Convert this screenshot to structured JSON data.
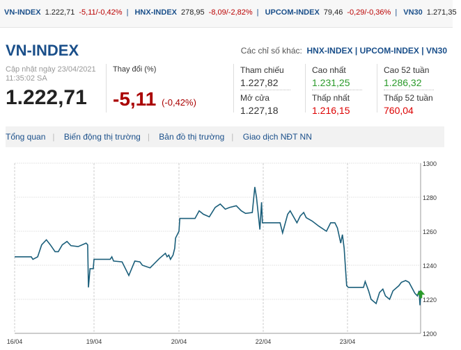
{
  "ticker": [
    {
      "name": "VN-INDEX",
      "value": "1.222,71",
      "change": "-5,11/-0,42%"
    },
    {
      "name": "HNX-INDEX",
      "value": "278,95",
      "change": "-8,09/-2,82%"
    },
    {
      "name": "UPCOM-INDEX",
      "value": "79,46",
      "change": "-0,29/-0,36%"
    },
    {
      "name": "VN30",
      "value": "1.271,35",
      "change": ""
    }
  ],
  "header": {
    "title": "VN-INDEX",
    "others_label": "Các chỉ số khác:",
    "others": [
      "HNX-INDEX",
      "UPCOM-INDEX",
      "VN30"
    ],
    "updated": "Cập nhật ngày 23/04/2021",
    "updated_time": "11:35:02 SA",
    "value": "1.222,71",
    "change_label": "Thay đổi (%)",
    "change": "-5,11",
    "change_pct": "(-0,42%)"
  },
  "stats": {
    "ref_label": "Tham chiếu",
    "ref": "1.227,82",
    "open_label": "Mở cửa",
    "open": "1.227,18",
    "high_label": "Cao nhất",
    "high": "1.231,25",
    "low_label": "Thấp nhất",
    "low": "1.216,15",
    "high52_label": "Cao 52 tuần",
    "high52": "1.286,32",
    "low52_label": "Thấp 52 tuần",
    "low52": "760,04"
  },
  "tabs": [
    "Tổng quan",
    "Biến động thị trường",
    "Bản đồ thị trường",
    "Giao dịch NĐT NN"
  ],
  "colors": {
    "line": "#1a5e7a",
    "up": "#2a9a2a",
    "down": "#cc0000",
    "brand": "#1a4f8a"
  },
  "chart_data": {
    "type": "line",
    "x_ticks": [
      "16/04",
      "19/04",
      "20/04",
      "22/04",
      "23/04"
    ],
    "y_ticks": [
      1200,
      1220,
      1240,
      1260,
      1280,
      1300
    ],
    "ylim": [
      1200,
      1300
    ],
    "grid": true,
    "y_axis": "right",
    "series": [
      {
        "x": [
          0,
          0.21,
          0.23,
          0.29,
          0.34,
          0.4,
          0.45,
          0.51,
          0.55,
          0.6,
          0.66,
          0.71,
          0.8,
          0.9,
          0.92,
          0.93,
          0.95,
          0.99,
          1,
          1.19,
          1.21,
          1.23,
          1.33,
          1.41,
          1.48,
          1.54,
          1.57,
          1.66,
          1.77,
          1.84,
          1.86,
          1.88,
          1.9,
          1.93,
          1.95,
          1.96,
          2.0,
          2.01,
          2.19,
          2.24,
          2.29,
          2.36,
          2.43,
          2.49,
          2.55,
          2.6,
          2.68,
          2.74,
          2.79,
          2.87,
          2.9,
          2.92,
          2.96,
          2.98,
          2.99,
          3.2,
          3.23,
          3.29,
          3.32,
          3.4,
          3.44,
          3.48,
          3.51,
          3.58,
          3.66,
          3.75,
          3.8,
          3.85,
          3.88,
          3.92,
          3.94,
          3.96,
          3.99,
          4.01,
          4.19,
          4.21,
          4.25,
          4.28,
          4.34,
          4.38,
          4.42,
          4.45,
          4.5,
          4.54,
          4.61,
          4.64,
          4.69,
          4.73,
          4.8,
          4.83,
          4.85,
          4.86,
          4.87
        ],
        "y": [
          1245,
          1245,
          1243.5,
          1245,
          1252,
          1255,
          1252,
          1248,
          1248,
          1252,
          1254,
          1251.5,
          1251,
          1253,
          1252,
          1227,
          1238,
          1238,
          1243.5,
          1243.5,
          1245,
          1242.5,
          1242,
          1234,
          1242.5,
          1242,
          1240,
          1238.5,
          1244,
          1247,
          1245,
          1246,
          1243.5,
          1246,
          1250,
          1256,
          1260,
          1267.5,
          1267.5,
          1272,
          1270,
          1268.5,
          1274,
          1276,
          1273,
          1274,
          1275,
          1272,
          1270.5,
          1271,
          1286,
          1280,
          1261,
          1277,
          1265,
          1265,
          1259,
          1270,
          1272,
          1265,
          1269,
          1271,
          1268,
          1266,
          1263,
          1260,
          1265,
          1265,
          1262,
          1253,
          1258,
          1250,
          1228,
          1227,
          1227,
          1230.5,
          1225,
          1220,
          1217.5,
          1224,
          1226,
          1222,
          1220,
          1225,
          1228,
          1230,
          1231,
          1230,
          1223.5,
          1222,
          1225,
          1216.5,
          1222.7
        ]
      }
    ]
  }
}
